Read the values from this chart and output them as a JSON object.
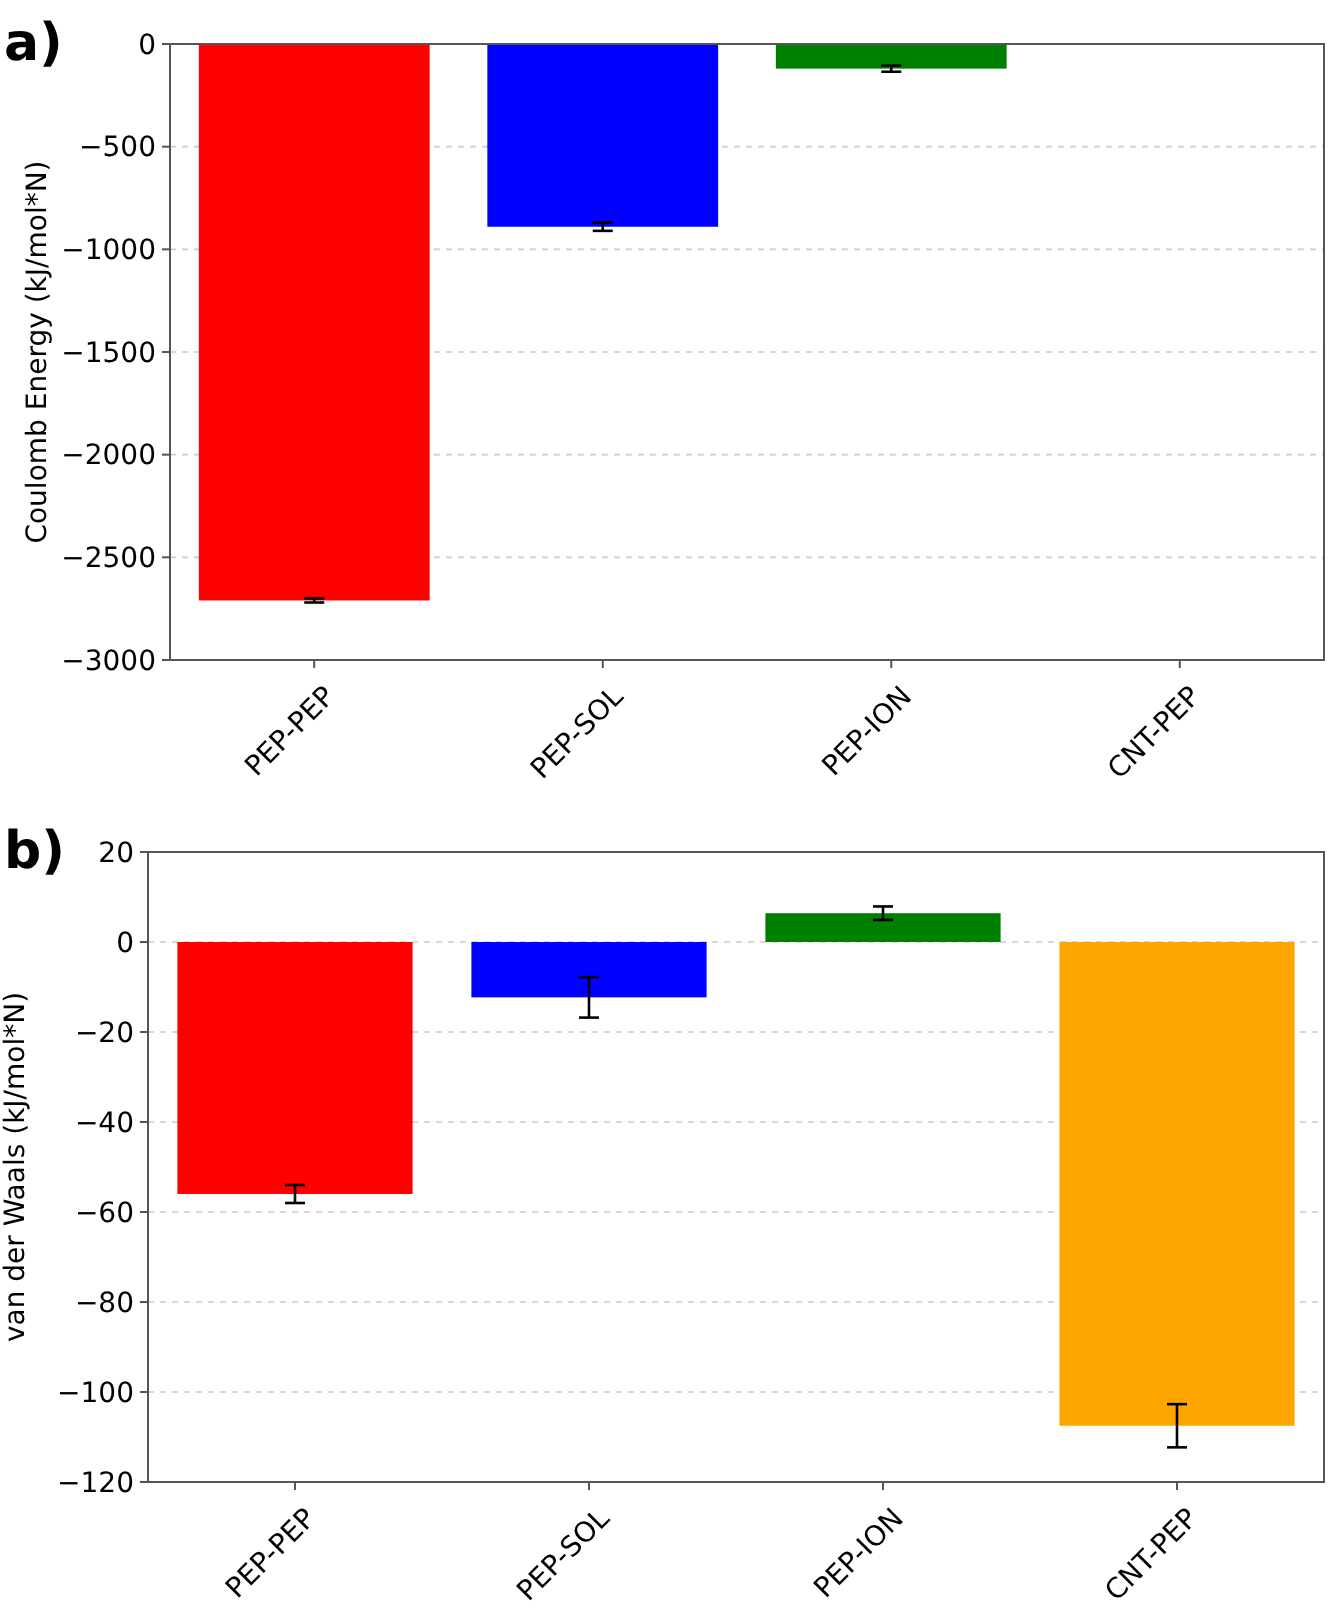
{
  "chart_data": [
    {
      "type": "bar",
      "title": "a)",
      "ylabel": "Coulomb Energy (kJ/mol*N)",
      "categories": [
        "PEP-PEP",
        "PEP-SOL",
        "PEP-ION",
        "CNT-PEP"
      ],
      "values": [
        -2710,
        -890,
        -120,
        null
      ],
      "errors": [
        10,
        20,
        15,
        null
      ],
      "colors": [
        "#ff0000",
        "#0000ff",
        "#008000",
        null
      ],
      "ylim": [
        -3000,
        0
      ],
      "yticks": [
        -3000,
        -2500,
        -2000,
        -1500,
        -1000,
        -500,
        0
      ],
      "grid": "y"
    },
    {
      "type": "bar",
      "title": "b)",
      "ylabel": "van der Waals (kJ/mol*N)",
      "categories": [
        "PEP-PEP",
        "PEP-SOL",
        "PEP-ION",
        "CNT-PEP"
      ],
      "values": [
        -56,
        -12.3,
        6.4,
        -107.5
      ],
      "errors": [
        2,
        4.5,
        1.5,
        4.8
      ],
      "colors": [
        "#ff0000",
        "#0000ff",
        "#008000",
        "#ffa500"
      ],
      "ylim": [
        -120,
        20
      ],
      "yticks": [
        -120,
        -100,
        -80,
        -60,
        -40,
        -20,
        0,
        20
      ],
      "grid": "y"
    }
  ]
}
